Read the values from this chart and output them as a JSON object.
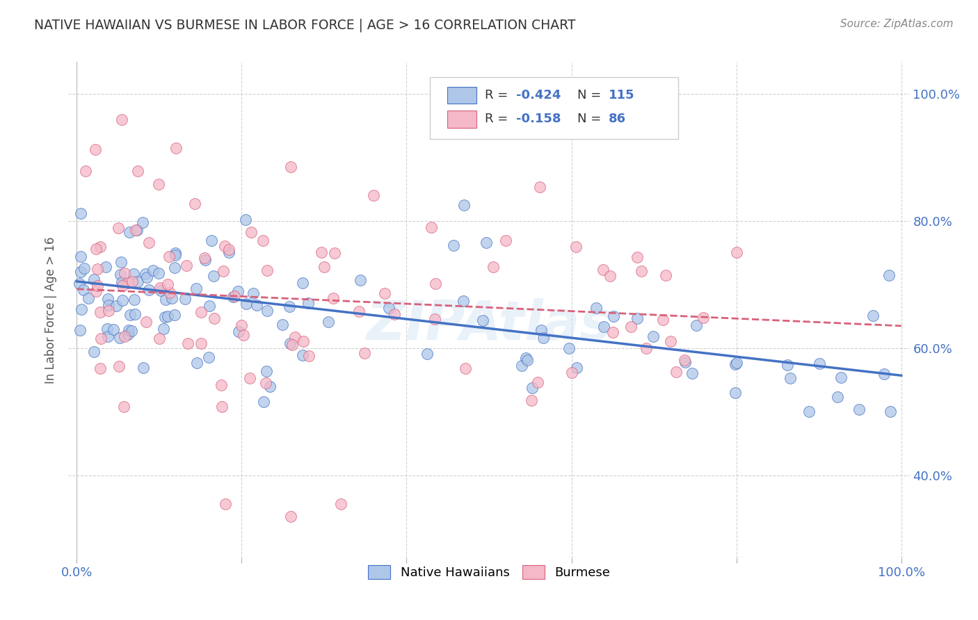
{
  "title": "NATIVE HAWAIIAN VS BURMESE IN LABOR FORCE | AGE > 16 CORRELATION CHART",
  "source": "Source: ZipAtlas.com",
  "ylabel": "In Labor Force | Age > 16",
  "watermark": "ZIPAtlas",
  "color_blue": "#aec6e8",
  "color_pink": "#f4b8c8",
  "line_blue": "#4472c4",
  "line_pink": "#d9607a",
  "axis_color": "#4472c4",
  "title_color": "#333333",
  "background": "#ffffff",
  "xlim": [
    -0.01,
    1.01
  ],
  "ylim": [
    0.27,
    1.05
  ],
  "xticks": [
    0.0,
    0.2,
    0.4,
    0.6,
    0.8,
    1.0
  ],
  "xticklabels": [
    "0.0%",
    "",
    "",
    "",
    "",
    "100.0%"
  ],
  "yticks_right": [
    0.4,
    0.6,
    0.8,
    1.0
  ],
  "yticklabels_right": [
    "40.0%",
    "60.0%",
    "80.0%",
    "100.0%"
  ],
  "blue_intercept": 0.705,
  "blue_slope": -0.148,
  "pink_intercept": 0.693,
  "pink_slope": -0.058
}
